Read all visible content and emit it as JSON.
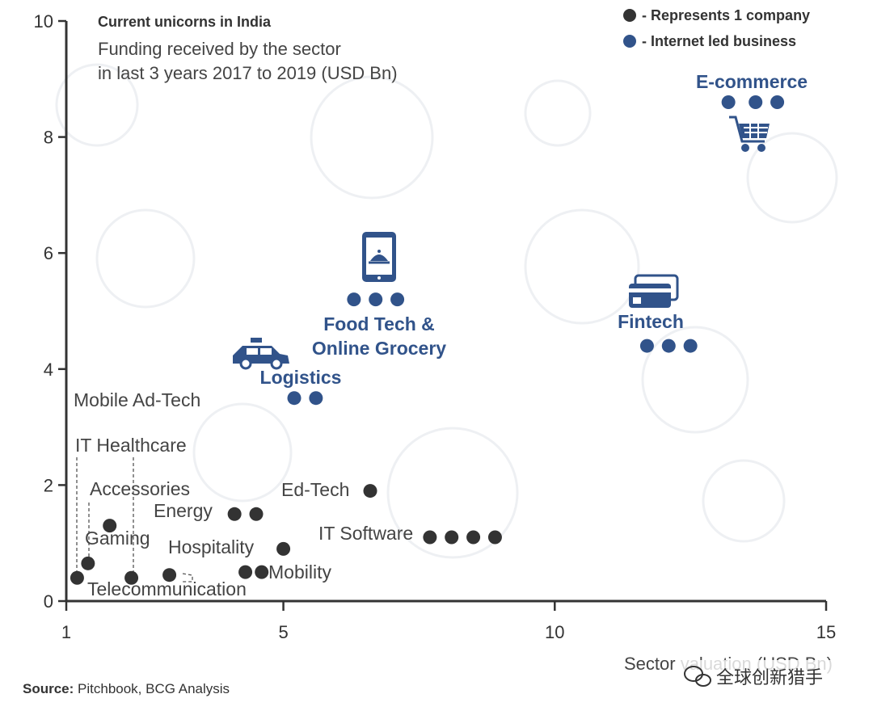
{
  "chart_data": {
    "type": "scatter",
    "title": "Current unicorns in India",
    "subtitle_lines": [
      "Funding received by the sector",
      "in last 3 years 2017 to 2019 (USD Bn)"
    ],
    "xlabel": "Sector valuation (USD Bn)",
    "xlim": [
      1,
      15
    ],
    "ylim": [
      0,
      10
    ],
    "x_ticks": [
      "1",
      "5",
      "10",
      "15"
    ],
    "y_ticks": [
      "0",
      "2",
      "4",
      "6",
      "8",
      "10"
    ],
    "colors": {
      "company": "#333333",
      "internet": "#31538a"
    },
    "legend": [
      {
        "key": "company",
        "label": "- Represents 1 company"
      },
      {
        "key": "internet",
        "label": "- Internet led business"
      }
    ],
    "sectors": [
      {
        "name": "E-commerce",
        "category": "internet",
        "y": 8.6,
        "x": [
          13.2,
          13.7,
          14.1
        ]
      },
      {
        "name_lines": [
          "Food Tech &",
          "Online Grocery"
        ],
        "category": "internet",
        "y": 5.2,
        "x": [
          6.3,
          6.7,
          7.1
        ]
      },
      {
        "name": "Fintech",
        "category": "internet",
        "y": 4.4,
        "x": [
          11.7,
          12.1,
          12.5
        ]
      },
      {
        "name": "Logistics",
        "category": "internet",
        "y": 3.5,
        "x": [
          5.2,
          5.6
        ]
      },
      {
        "name": "Mobile Ad-Tech",
        "category": "company",
        "y": 0.4,
        "x": [
          1.2
        ]
      },
      {
        "name": "IT Healthcare",
        "category": "company",
        "y": 0.4,
        "x": [
          2.2
        ]
      },
      {
        "name": "Accessories",
        "category": "company",
        "y": 1.3,
        "x": [
          1.8
        ]
      },
      {
        "name": "Gaming",
        "category": "company",
        "y": 0.65,
        "x": [
          1.4
        ]
      },
      {
        "name": "Telecommunication",
        "category": "company",
        "y": 0.45,
        "x": [
          2.9
        ]
      },
      {
        "name": "Energy",
        "category": "company",
        "y": 1.5,
        "x": [
          4.1,
          4.5
        ]
      },
      {
        "name": "Hospitality",
        "category": "company",
        "y": 0.9,
        "x": [
          5.0
        ]
      },
      {
        "name": "Mobility",
        "category": "company",
        "y": 0.5,
        "x": [
          4.3,
          4.6
        ]
      },
      {
        "name": "Ed-Tech",
        "category": "company",
        "y": 1.9,
        "x": [
          6.6
        ]
      },
      {
        "name": "IT Software",
        "category": "company",
        "y": 1.1,
        "x": [
          7.7,
          8.1,
          8.5,
          8.9
        ]
      }
    ],
    "grid": false
  },
  "source": {
    "label": "Source:",
    "text": " Pitchbook, BCG Analysis"
  },
  "watermark": "全球创新猎手"
}
